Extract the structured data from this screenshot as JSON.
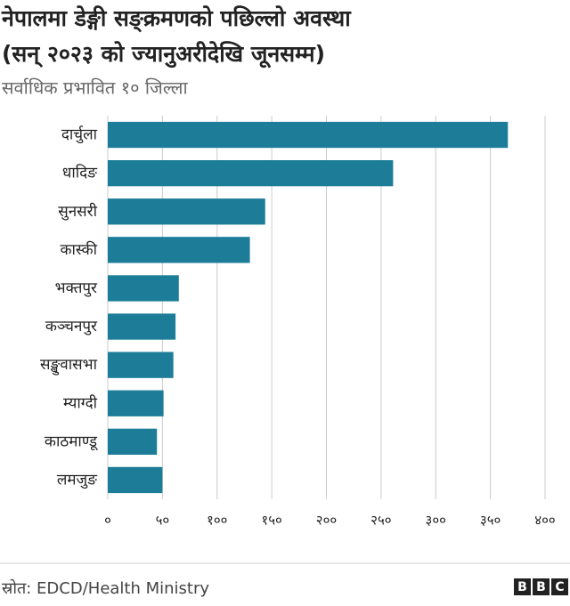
{
  "chart_data": {
    "type": "bar",
    "orientation": "horizontal",
    "title": [
      "नेपालमा डेङ्गी सङ्क्रमणको पछिल्लो अवस्था",
      "(सन् २०२३ को ज्यानुअरीदेखि जूनसम्म)"
    ],
    "subtitle": "सर्वाधिक प्रभावित १० जिल्ला",
    "categories": [
      "दार्चुला",
      "धादिङ",
      "सुनसरी",
      "कास्की",
      "भक्तपुर",
      "कञ्चनपुर",
      "सङ्खुवासभा",
      "म्याग्दी",
      "काठमाण्डू",
      "लमजुङ"
    ],
    "values": [
      366,
      261,
      144,
      130,
      65,
      62,
      60,
      51,
      45,
      50
    ],
    "color": "#1d7d98",
    "xlim": [
      0,
      400
    ],
    "xticks": [
      {
        "value": 0,
        "label": "०"
      },
      {
        "value": 50,
        "label": "५०"
      },
      {
        "value": 100,
        "label": "१००"
      },
      {
        "value": 150,
        "label": "१५०"
      },
      {
        "value": 200,
        "label": "२००"
      },
      {
        "value": 250,
        "label": "२५०"
      },
      {
        "value": 300,
        "label": "३००"
      },
      {
        "value": 350,
        "label": "३५०"
      },
      {
        "value": 400,
        "label": "४००"
      }
    ],
    "grid": true,
    "source": "स्रोत: EDCD/Health Ministry",
    "logo": [
      "B",
      "B",
      "C"
    ]
  }
}
